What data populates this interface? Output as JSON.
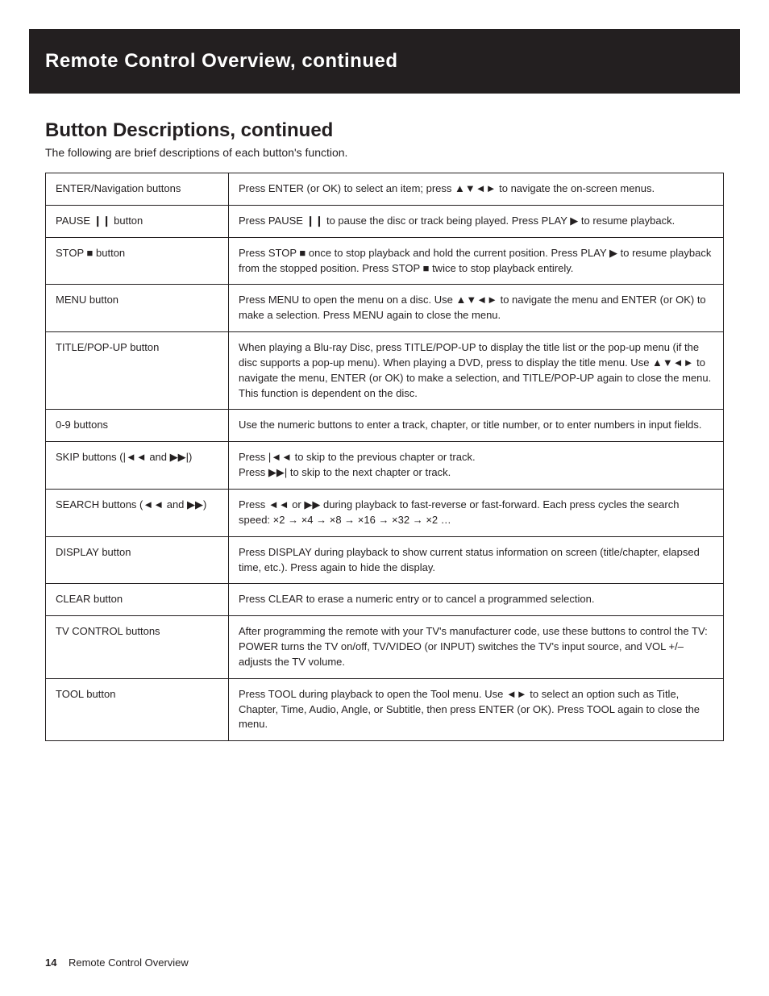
{
  "page": {
    "bar_title": "Remote Control Overview, continued",
    "section_title": "Button Descriptions, continued",
    "intro": "The following are brief descriptions of each button's function.",
    "footer_page": "14",
    "footer_text": "Remote Control Overview"
  },
  "icons": {
    "dpad": "▲▼◄►",
    "pause": "❙❙",
    "stop": "■",
    "play": "▶",
    "prev": "|◄◄",
    "next": "▶▶|",
    "rew": "◄◄",
    "ff": "▶▶",
    "lr": "◄►"
  },
  "rows": [
    {
      "label_parts": [
        {
          "t": "ENTER/Navigation "
        },
        {
          "t": "buttons"
        }
      ],
      "desc_parts": [
        {
          "t": "Press ENTER (or OK) to select an item; press "
        },
        {
          "icon": "dpad"
        },
        {
          "t": " to navigate the on-screen menus."
        }
      ]
    },
    {
      "label_parts": [
        {
          "t": "PAUSE "
        },
        {
          "icon": "pause"
        },
        {
          "t": " button"
        }
      ],
      "desc_parts": [
        {
          "t": "Press PAUSE "
        },
        {
          "icon": "pause"
        },
        {
          "t": " to pause the disc or track being played. Press PLAY "
        },
        {
          "icon": "play"
        },
        {
          "t": " to resume playback."
        }
      ]
    },
    {
      "label_parts": [
        {
          "t": "STOP "
        },
        {
          "icon": "stop"
        },
        {
          "t": " button"
        }
      ],
      "desc_parts": [
        {
          "t": "Press STOP "
        },
        {
          "icon": "stop"
        },
        {
          "t": " once to stop playback and hold the current position. Press PLAY "
        },
        {
          "icon": "play"
        },
        {
          "t": " to resume playback from the stopped position. Press STOP "
        },
        {
          "icon": "stop"
        },
        {
          "t": " twice to stop playback entirely."
        }
      ]
    },
    {
      "label_parts": [
        {
          "t": "MENU button"
        }
      ],
      "desc_parts": [
        {
          "t": "Press MENU to open the menu on a disc. Use "
        },
        {
          "icon": "dpad"
        },
        {
          "t": " to navigate the menu and ENTER (or OK) to make a selection. Press MENU again to close the menu."
        }
      ]
    },
    {
      "label_parts": [
        {
          "t": "TITLE/POP-UP button"
        }
      ],
      "desc_parts": [
        {
          "t": "When playing a Blu-ray Disc, press TITLE/POP-UP to display the title list or the pop-up menu (if the disc supports a pop-up menu). When playing a DVD, press to display the title menu. Use "
        },
        {
          "icon": "dpad"
        },
        {
          "t": " to navigate the menu, ENTER (or OK) to make a selection, and TITLE/POP-UP again to close the menu. This function is dependent on the disc."
        }
      ]
    },
    {
      "label_parts": [
        {
          "t": "0-9 buttons"
        }
      ],
      "desc_parts": [
        {
          "t": "Use the numeric buttons to enter a track, chapter, or title number, or to enter numbers in input fields."
        }
      ]
    },
    {
      "label_parts": [
        {
          "t": "SKIP buttons ("
        },
        {
          "icon": "prev"
        },
        {
          "t": " and "
        },
        {
          "icon": "next"
        },
        {
          "t": ")"
        }
      ],
      "desc_parts": [
        {
          "t": "Press "
        },
        {
          "icon": "prev"
        },
        {
          "t": " to skip to the previous chapter or track.\nPress "
        },
        {
          "icon": "next"
        },
        {
          "t": " to skip to the next chapter or track."
        }
      ]
    },
    {
      "label_parts": [
        {
          "t": "SEARCH buttons ("
        },
        {
          "icon": "rew"
        },
        {
          "t": " and "
        },
        {
          "icon": "ff"
        },
        {
          "t": ")"
        }
      ],
      "desc_parts": [
        {
          "t": "Press "
        },
        {
          "icon": "rew"
        },
        {
          "t": " or "
        },
        {
          "icon": "ff"
        },
        {
          "t": " during playback to fast-reverse or fast-forward. Each press cycles the search speed: ×2 → ×4 → ×8 → ×16 → ×32 → ×2 …"
        }
      ]
    },
    {
      "label_parts": [
        {
          "t": "DISPLAY button"
        }
      ],
      "desc_parts": [
        {
          "t": "Press DISPLAY during playback to show current status information on screen (title/chapter, elapsed time, etc.). Press again to hide the display."
        }
      ]
    },
    {
      "label_parts": [
        {
          "t": "CLEAR button"
        }
      ],
      "desc_parts": [
        {
          "t": "Press CLEAR to erase a numeric entry or to cancel a programmed selection."
        }
      ]
    },
    {
      "label_parts": [
        {
          "t": "TV CONTROL buttons"
        }
      ],
      "desc_parts": [
        {
          "t": "After programming the remote with your TV's manufacturer code, use these buttons to control the TV: POWER turns the TV on/off, TV/VIDEO (or INPUT) switches the TV's input source, and VOL +/– adjusts the TV volume."
        }
      ]
    },
    {
      "label_parts": [
        {
          "t": "TOOL button"
        }
      ],
      "desc_parts": [
        {
          "t": "Press TOOL during playback to open the Tool menu. Use "
        },
        {
          "icon": "lr"
        },
        {
          "t": " to select an option such as Title, Chapter, Time, Audio, Angle, or Subtitle, then press ENTER (or OK). Press TOOL again to close the menu."
        }
      ]
    }
  ]
}
